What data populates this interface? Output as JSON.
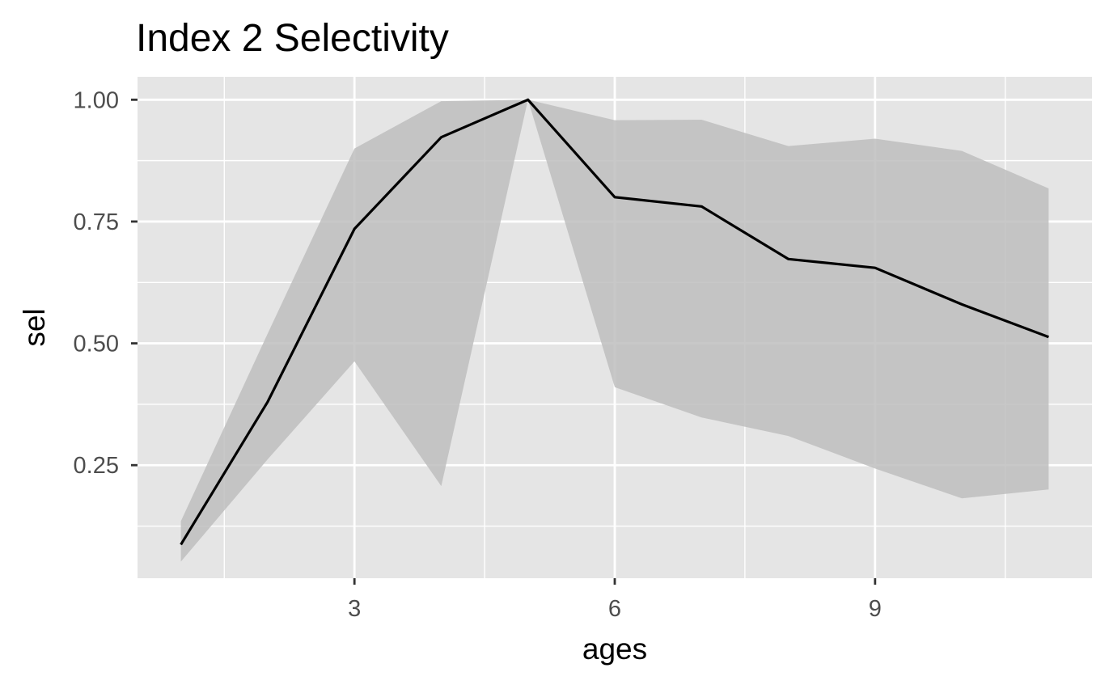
{
  "chart_data": {
    "type": "line",
    "title": "Index 2 Selectivity",
    "xlabel": "ages",
    "ylabel": "sel",
    "xlim": [
      0.5,
      11.5
    ],
    "ylim": [
      0.018,
      1.047
    ],
    "x_ticks": [
      3,
      6,
      9
    ],
    "x_tick_labels": [
      "3",
      "6",
      "9"
    ],
    "x_minor_ticks": [
      1.5,
      4.5,
      7.5,
      10.5
    ],
    "y_ticks": [
      0.25,
      0.5,
      0.75,
      1.0
    ],
    "y_tick_labels": [
      "0.25",
      "0.50",
      "0.75",
      "1.00"
    ],
    "y_minor_ticks": [
      0.125,
      0.375,
      0.625,
      0.875
    ],
    "grid": true,
    "legend": "none",
    "series": [
      {
        "x": [
          1,
          2,
          3,
          4,
          5,
          6,
          7,
          8,
          9,
          10,
          11
        ],
        "y": [
          0.087,
          0.38,
          0.735,
          0.923,
          1.0,
          0.8,
          0.781,
          0.673,
          0.655,
          0.58,
          0.513
        ],
        "lower": [
          0.052,
          0.262,
          0.463,
          0.207,
          1.0,
          0.41,
          0.348,
          0.31,
          0.243,
          0.182,
          0.2
        ],
        "upper": [
          0.135,
          0.52,
          0.9,
          0.997,
          1.0,
          0.958,
          0.959,
          0.905,
          0.92,
          0.895,
          0.818
        ]
      }
    ],
    "colors": {
      "panel_background": "#e5e5e5",
      "grid": "#ffffff",
      "ribbon": "#bebebe",
      "line": "#000000",
      "tick_text": "#4d4d4d",
      "axis_ticks": "#333333"
    }
  }
}
